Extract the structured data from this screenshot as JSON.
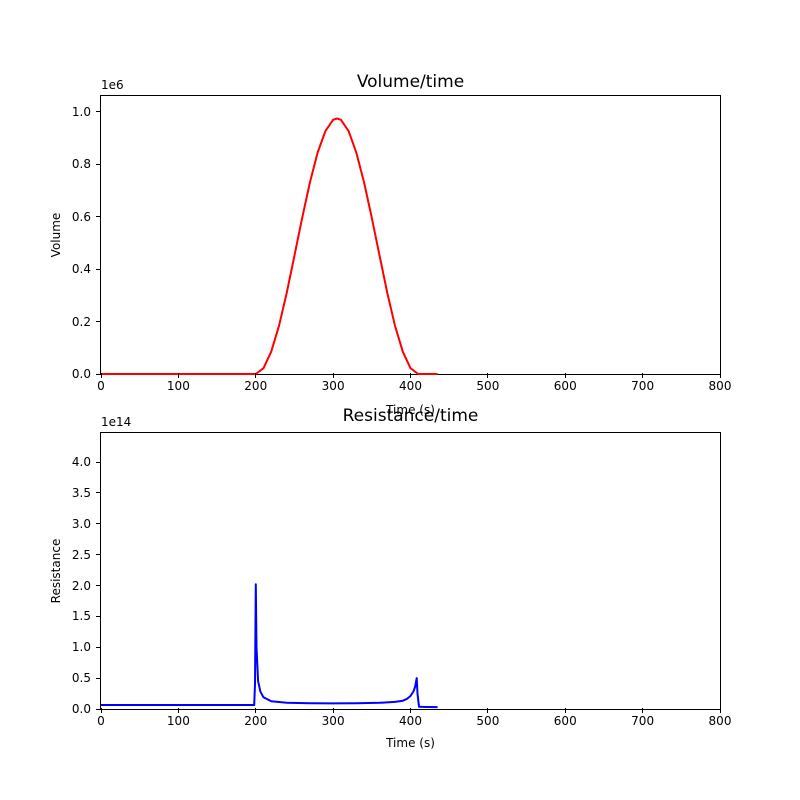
{
  "figure": {
    "background": "#ffffff",
    "text_color": "#000000"
  },
  "chart_data": [
    {
      "type": "line",
      "title": "Volume/time",
      "xlabel": "Time (s)",
      "ylabel": "Volume",
      "offset_text": "1e6",
      "line_color": "#ff0000",
      "line_width": 2,
      "grid": false,
      "legend": null,
      "xlim": [
        0,
        800
      ],
      "ylim": [
        0,
        1.061
      ],
      "xticks": [
        0,
        100,
        200,
        300,
        400,
        500,
        600,
        700,
        800
      ],
      "xtick_labels": [
        "0",
        "100",
        "200",
        "300",
        "400",
        "500",
        "600",
        "700",
        "800"
      ],
      "yticks": [
        0.0,
        0.2,
        0.4,
        0.6,
        0.8,
        1.0
      ],
      "ytick_labels": [
        "0.0",
        "0.2",
        "0.4",
        "0.6",
        "0.8",
        "1.0"
      ],
      "units_note": "y values in multiples of 1e6",
      "series": {
        "name": "Volume",
        "x": [
          0,
          50,
          100,
          150,
          190,
          200,
          210,
          220,
          230,
          240,
          250,
          260,
          270,
          280,
          290,
          300,
          305,
          310,
          320,
          330,
          340,
          350,
          360,
          370,
          380,
          390,
          400,
          410,
          420,
          435
        ],
        "y": [
          0,
          0,
          0,
          0,
          0,
          0,
          0.022,
          0.085,
          0.184,
          0.309,
          0.451,
          0.596,
          0.731,
          0.845,
          0.927,
          0.97,
          0.975,
          0.97,
          0.927,
          0.845,
          0.731,
          0.596,
          0.451,
          0.309,
          0.184,
          0.085,
          0.022,
          0,
          0,
          0
        ]
      }
    },
    {
      "type": "line",
      "title": "Resistance/time",
      "xlabel": "Time (s)",
      "ylabel": "Resistance",
      "offset_text": "1e14",
      "line_color": "#0000ff",
      "line_width": 2,
      "grid": false,
      "legend": null,
      "xlim": [
        0,
        800
      ],
      "ylim": [
        0,
        4.47
      ],
      "xticks": [
        0,
        100,
        200,
        300,
        400,
        500,
        600,
        700,
        800
      ],
      "xtick_labels": [
        "0",
        "100",
        "200",
        "300",
        "400",
        "500",
        "600",
        "700",
        "800"
      ],
      "yticks": [
        0.0,
        0.5,
        1.0,
        1.5,
        2.0,
        2.5,
        3.0,
        3.5,
        4.0
      ],
      "ytick_labels": [
        "0.0",
        "0.5",
        "1.0",
        "1.5",
        "2.0",
        "2.5",
        "3.0",
        "3.5",
        "4.0"
      ],
      "units_note": "y values in multiples of 1e14",
      "series": {
        "name": "Resistance",
        "x": [
          0,
          50,
          100,
          150,
          195,
          198,
          199,
          200,
          201,
          203,
          206,
          210,
          220,
          240,
          270,
          300,
          330,
          360,
          380,
          390,
          395,
          400,
          404,
          406,
          408,
          409,
          411,
          420,
          435
        ],
        "y": [
          0.065,
          0.065,
          0.065,
          0.065,
          0.065,
          0.065,
          0.4,
          2.02,
          1.0,
          0.45,
          0.28,
          0.19,
          0.125,
          0.1,
          0.092,
          0.09,
          0.092,
          0.1,
          0.115,
          0.135,
          0.16,
          0.21,
          0.29,
          0.36,
          0.5,
          0.25,
          0.035,
          0.032,
          0.03
        ]
      }
    }
  ]
}
